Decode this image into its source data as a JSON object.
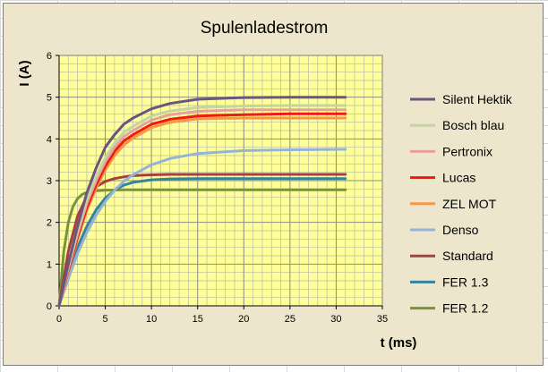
{
  "chart_data": {
    "type": "line",
    "title": "Spulenladestrom",
    "xlabel": "t (ms)",
    "ylabel": "I (A)",
    "xlim": [
      0,
      35
    ],
    "ylim": [
      0,
      6
    ],
    "x_ticks": [
      0,
      5,
      10,
      15,
      20,
      25,
      30,
      35
    ],
    "y_ticks": [
      0,
      1,
      2,
      3,
      4,
      5,
      6
    ],
    "grid": true,
    "legend_position": "right",
    "series": [
      {
        "name": "Silent Hektik",
        "color": "#6a5580",
        "x": [
          0,
          1,
          2,
          3,
          4,
          5,
          6,
          7,
          8,
          10,
          12,
          15,
          20,
          25,
          31
        ],
        "y": [
          0,
          1.0,
          1.9,
          2.7,
          3.3,
          3.8,
          4.1,
          4.35,
          4.5,
          4.72,
          4.85,
          4.95,
          4.99,
          5.0,
          5.0
        ]
      },
      {
        "name": "Bosch blau",
        "color": "#c3d69b",
        "x": [
          0,
          1,
          2,
          3,
          4,
          5,
          6,
          7,
          8,
          10,
          12,
          15,
          20,
          25,
          31
        ],
        "y": [
          0,
          0.95,
          1.8,
          2.55,
          3.1,
          3.55,
          3.9,
          4.15,
          4.3,
          4.55,
          4.67,
          4.75,
          4.79,
          4.8,
          4.8
        ]
      },
      {
        "name": "Pertronix",
        "color": "#e6a0a0",
        "x": [
          0,
          1,
          2,
          3,
          4,
          5,
          6,
          7,
          8,
          10,
          12,
          15,
          20,
          25,
          31
        ],
        "y": [
          0,
          0.9,
          1.72,
          2.45,
          3.0,
          3.45,
          3.8,
          4.05,
          4.2,
          4.45,
          4.58,
          4.66,
          4.7,
          4.7,
          4.7
        ]
      },
      {
        "name": "Lucas",
        "color": "#ee1c0e",
        "x": [
          0,
          1,
          2,
          3,
          4,
          5,
          6,
          7,
          8,
          10,
          12,
          15,
          20,
          25,
          31
        ],
        "y": [
          0,
          0.85,
          1.65,
          2.35,
          2.9,
          3.35,
          3.7,
          3.95,
          4.1,
          4.35,
          4.47,
          4.55,
          4.58,
          4.6,
          4.6
        ]
      },
      {
        "name": "ZEL MOT",
        "color": "#f79646",
        "x": [
          0,
          1,
          2,
          3,
          4,
          5,
          6,
          7,
          8,
          10,
          12,
          15,
          20,
          25,
          31
        ],
        "y": [
          0,
          0.82,
          1.6,
          2.28,
          2.82,
          3.26,
          3.6,
          3.85,
          4.02,
          4.27,
          4.4,
          4.48,
          4.5,
          4.5,
          4.5
        ]
      },
      {
        "name": "Denso",
        "color": "#95b3d7",
        "x": [
          0,
          1,
          2,
          3,
          4,
          5,
          6,
          7,
          8,
          10,
          12,
          15,
          20,
          25,
          31
        ],
        "y": [
          0,
          0.65,
          1.25,
          1.75,
          2.17,
          2.5,
          2.77,
          2.98,
          3.14,
          3.38,
          3.53,
          3.65,
          3.72,
          3.74,
          3.75
        ]
      },
      {
        "name": "Standard",
        "color": "#a5413d",
        "x": [
          0,
          1,
          2,
          3,
          4,
          5,
          6,
          7,
          8,
          10,
          12,
          15,
          20,
          25,
          31
        ],
        "y": [
          0,
          1.3,
          2.15,
          2.62,
          2.85,
          2.98,
          3.05,
          3.09,
          3.12,
          3.14,
          3.15,
          3.15,
          3.15,
          3.15,
          3.15
        ]
      },
      {
        "name": "FER 1.3",
        "color": "#31849b",
        "x": [
          0,
          1,
          2,
          3,
          4,
          5,
          6,
          7,
          8,
          10,
          12,
          15,
          20,
          25,
          31
        ],
        "y": [
          0,
          0.75,
          1.4,
          1.9,
          2.3,
          2.58,
          2.77,
          2.89,
          2.96,
          3.02,
          3.04,
          3.05,
          3.05,
          3.05,
          3.05
        ]
      },
      {
        "name": "FER 1.2",
        "color": "#77933c",
        "x": [
          0,
          0.5,
          1,
          1.5,
          2,
          2.5,
          3,
          4,
          5,
          7,
          10,
          15,
          20,
          31
        ],
        "y": [
          0,
          1.3,
          2.0,
          2.38,
          2.57,
          2.67,
          2.72,
          2.76,
          2.77,
          2.78,
          2.78,
          2.78,
          2.78,
          2.78
        ]
      }
    ]
  }
}
